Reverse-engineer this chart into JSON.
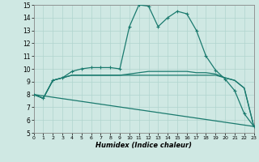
{
  "xlabel": "Humidex (Indice chaleur)",
  "xlim": [
    0,
    23
  ],
  "ylim": [
    5,
    15
  ],
  "yticks": [
    5,
    6,
    7,
    8,
    9,
    10,
    11,
    12,
    13,
    14,
    15
  ],
  "xticks": [
    0,
    1,
    2,
    3,
    4,
    5,
    6,
    7,
    8,
    9,
    10,
    11,
    12,
    13,
    14,
    15,
    16,
    17,
    18,
    19,
    20,
    21,
    22,
    23
  ],
  "bg_color": "#cfe8e3",
  "line_color": "#1a7a6e",
  "grid_color": "#b0d4ce",
  "line1_x": [
    0,
    1,
    2,
    3,
    4,
    5,
    6,
    7,
    8,
    9,
    10,
    11,
    12,
    13,
    14,
    15,
    16,
    17,
    18,
    19,
    20,
    21,
    22,
    23
  ],
  "line1_y": [
    8.0,
    7.7,
    9.1,
    9.3,
    9.8,
    10.0,
    10.1,
    10.1,
    10.1,
    10.0,
    13.3,
    15.0,
    14.9,
    13.3,
    14.0,
    14.5,
    14.3,
    13.0,
    11.0,
    9.9,
    9.2,
    8.3,
    6.5,
    5.5
  ],
  "line2_x": [
    0,
    1,
    2,
    3,
    4,
    5,
    6,
    7,
    8,
    9,
    10,
    11,
    12,
    13,
    14,
    15,
    16,
    17,
    18,
    19,
    20,
    21,
    22,
    23
  ],
  "line2_y": [
    8.0,
    7.7,
    9.1,
    9.3,
    9.5,
    9.5,
    9.5,
    9.5,
    9.5,
    9.5,
    9.6,
    9.7,
    9.8,
    9.8,
    9.8,
    9.8,
    9.8,
    9.7,
    9.7,
    9.6,
    9.3,
    9.1,
    8.5,
    5.5
  ],
  "line3_x": [
    0,
    23
  ],
  "line3_y": [
    8.0,
    5.5
  ],
  "line4_x": [
    0,
    1,
    2,
    3,
    4,
    5,
    6,
    7,
    8,
    9,
    10,
    11,
    12,
    13,
    14,
    15,
    16,
    17,
    18,
    19,
    20,
    21,
    22,
    23
  ],
  "line4_y": [
    8.0,
    7.7,
    9.1,
    9.3,
    9.5,
    9.5,
    9.5,
    9.5,
    9.5,
    9.5,
    9.5,
    9.5,
    9.5,
    9.5,
    9.5,
    9.5,
    9.5,
    9.5,
    9.5,
    9.5,
    9.3,
    9.1,
    8.5,
    5.5
  ]
}
